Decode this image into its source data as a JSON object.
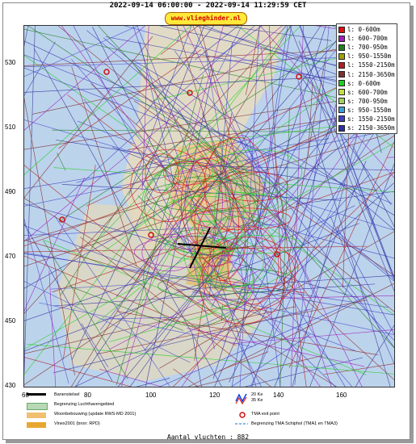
{
  "title": "2022-09-14 06:00:00 - 2022-09-14 11:29:59 CET",
  "site": "www.vlieghinder.nl",
  "y_ticks": [
    "530",
    "510",
    "490",
    "470",
    "450",
    "430"
  ],
  "x_ticks": [
    "60",
    "80",
    "100",
    "120",
    "140",
    "160"
  ],
  "legend": [
    {
      "label": "l: 0-600m",
      "color": "#e01010"
    },
    {
      "label": "l: 600-700m",
      "color": "#a020c0"
    },
    {
      "label": "l: 700-950m",
      "color": "#208020"
    },
    {
      "label": "l: 950-1550m",
      "color": "#a0a000"
    },
    {
      "label": "l: 1550-2150m",
      "color": "#b02020"
    },
    {
      "label": "l: 2150-3650m",
      "color": "#803030"
    },
    {
      "label": "s: 0-600m",
      "color": "#20d020"
    },
    {
      "label": "s: 600-700m",
      "color": "#c0e040"
    },
    {
      "label": "s: 700-950m",
      "color": "#a0d060"
    },
    {
      "label": "s: 950-1550m",
      "color": "#40a0d0"
    },
    {
      "label": "s: 1550-2150m",
      "color": "#4040c0"
    },
    {
      "label": "s: 2150-3650m",
      "color": "#3030a0"
    }
  ],
  "bottom_legend": {
    "runway": "Banenstelsel",
    "airport": "Begrenzing Luchthavengebied",
    "housing": "Woonbebouwing (update RWS-MD 2001)",
    "vinex": "Vinex2001 (bron: RPD)",
    "noise_a": "20 Ke",
    "noise_b": "35 Ke",
    "tma_exit": "TMA exit point",
    "tma_boundary": "Begrenzing TMA Schiphol  (TMA1 en TMA3)"
  },
  "footer": "Aantal vluchten : 882",
  "colors": {
    "map_bg": "#bcd3ec",
    "water": "#c6d6ea",
    "land": "#e8dcc0"
  }
}
